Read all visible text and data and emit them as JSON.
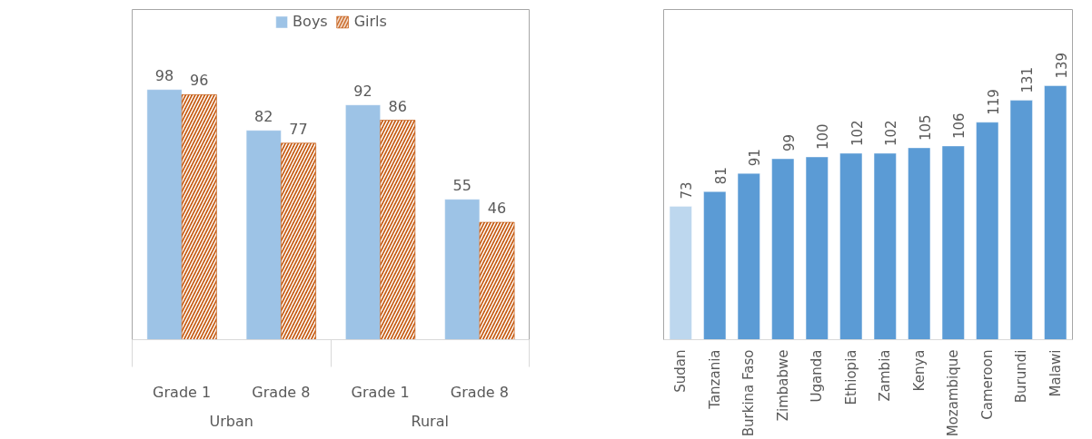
{
  "chart_data": [
    {
      "type": "bar",
      "categories": [
        "Grade 1",
        "Grade 8",
        "Grade 1",
        "Grade 8"
      ],
      "annotations": [
        "Urban",
        "Rural"
      ],
      "data_labels": true,
      "legend": "top",
      "series": [
        {
          "name": "Boys",
          "color": "#9dc3e6",
          "values": [
            98,
            82,
            92,
            55
          ]
        },
        {
          "name": "Girls",
          "color": "#c55a11",
          "values": [
            96,
            77,
            86,
            46
          ]
        }
      ]
    },
    {
      "type": "bar",
      "categories": [
        "Sudan",
        "Tanzania",
        "Burkina Faso",
        "Zimbabwe",
        "Uganda",
        "Ethiopia",
        "Zambia",
        "Kenya",
        "Mozambique",
        "Cameroon",
        "Burundi",
        "Malawi"
      ],
      "values": [
        73,
        81,
        91,
        99,
        100,
        102,
        102,
        105,
        106,
        119,
        131,
        139
      ],
      "colors": [
        "#bdd7ee",
        "#5b9bd5",
        "#5b9bd5",
        "#5b9bd5",
        "#5b9bd5",
        "#5b9bd5",
        "#5b9bd5",
        "#5b9bd5",
        "#5b9bd5",
        "#5b9bd5",
        "#5b9bd5",
        "#5b9bd5"
      ],
      "data_labels": true
    }
  ]
}
